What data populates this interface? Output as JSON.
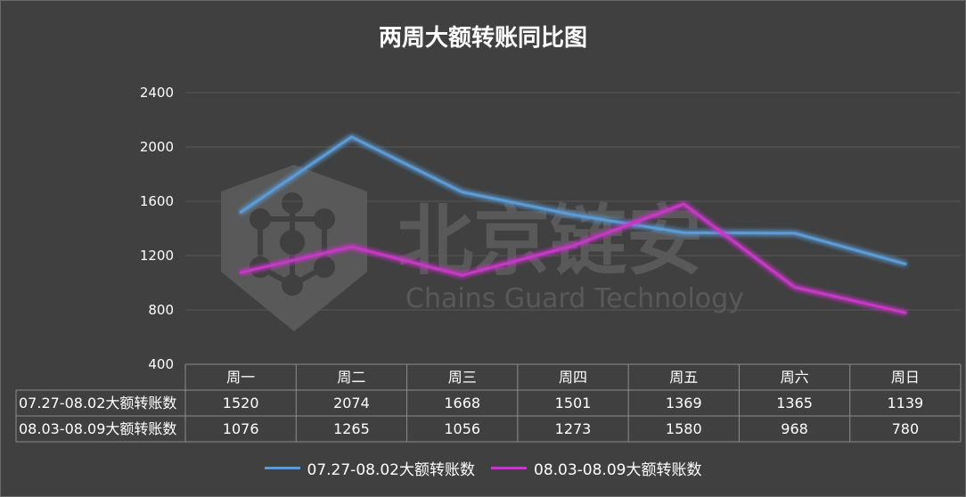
{
  "chart_data": {
    "type": "line",
    "title": "两周大额转账同比图",
    "categories": [
      "周一",
      "周二",
      "周三",
      "周四",
      "周五",
      "周六",
      "周日"
    ],
    "ylim": [
      400,
      2400
    ],
    "yticks": [
      2400,
      2000,
      1600,
      1200,
      800,
      400
    ],
    "grid": true,
    "legend_position": "bottom",
    "series": [
      {
        "name": "07.27-08.02大额转账数",
        "color": "#5b9bd5",
        "values": [
          1520,
          2074,
          1668,
          1501,
          1369,
          1365,
          1139
        ]
      },
      {
        "name": "08.03-08.09大额转账数",
        "color": "#c737c7",
        "values": [
          1076,
          1265,
          1056,
          1273,
          1580,
          968,
          780
        ]
      }
    ]
  },
  "watermark": {
    "text_cn": "北京链安",
    "text_en": "Chains Guard Technology"
  }
}
